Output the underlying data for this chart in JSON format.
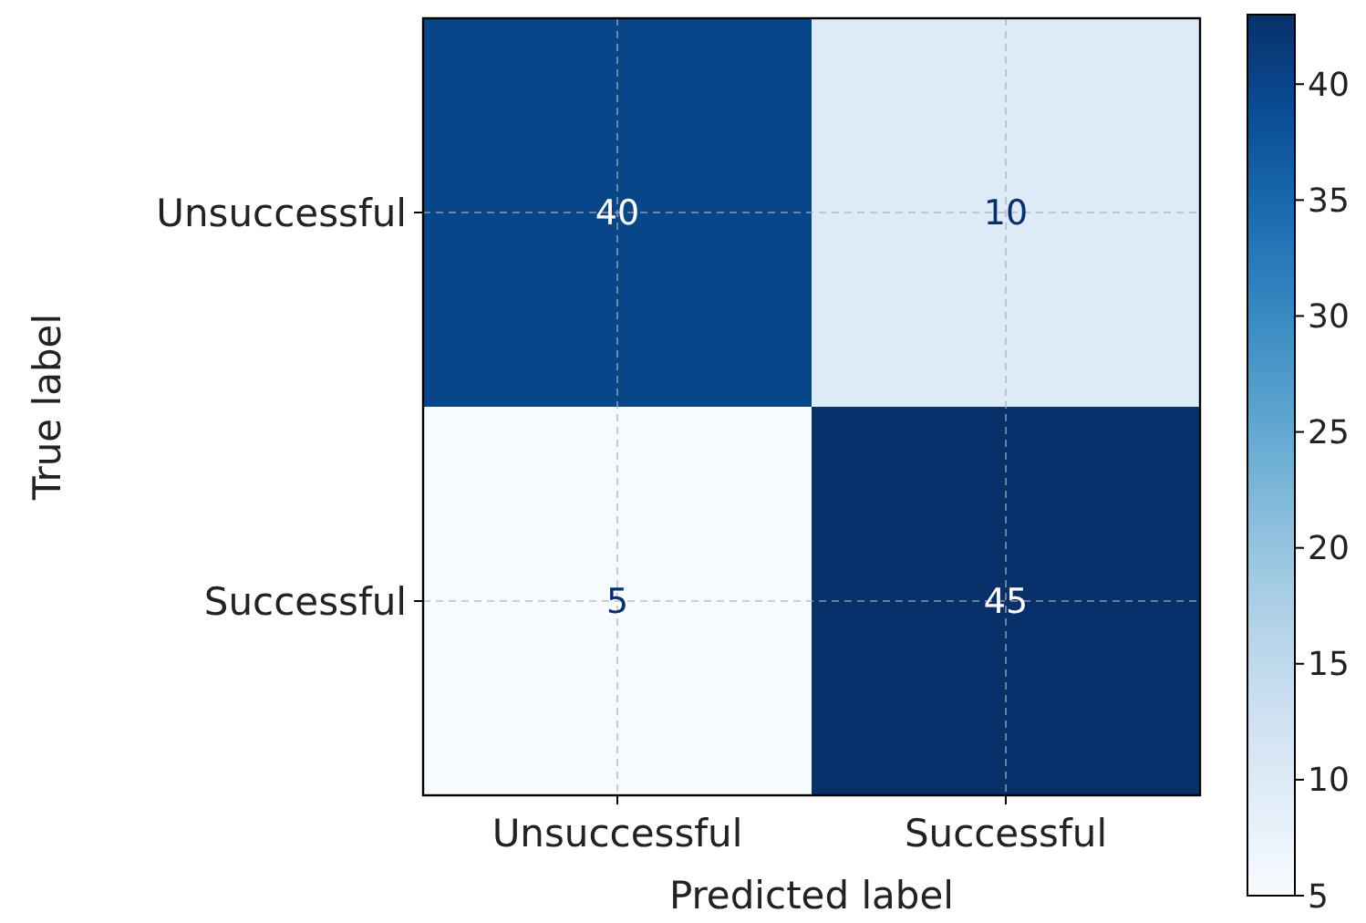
{
  "chart_data": {
    "type": "heatmap",
    "xlabel": "Predicted label",
    "ylabel": "True label",
    "categories": [
      "Unsuccessful",
      "Successful"
    ],
    "y_categories": [
      "Unsuccessful",
      "Successful"
    ],
    "cells": [
      [
        40,
        10
      ],
      [
        5,
        45
      ]
    ],
    "data_labels": true,
    "grid": true,
    "clim": [
      5,
      43
    ],
    "cticks": [
      5,
      10,
      15,
      20,
      25,
      30,
      35,
      40
    ]
  }
}
